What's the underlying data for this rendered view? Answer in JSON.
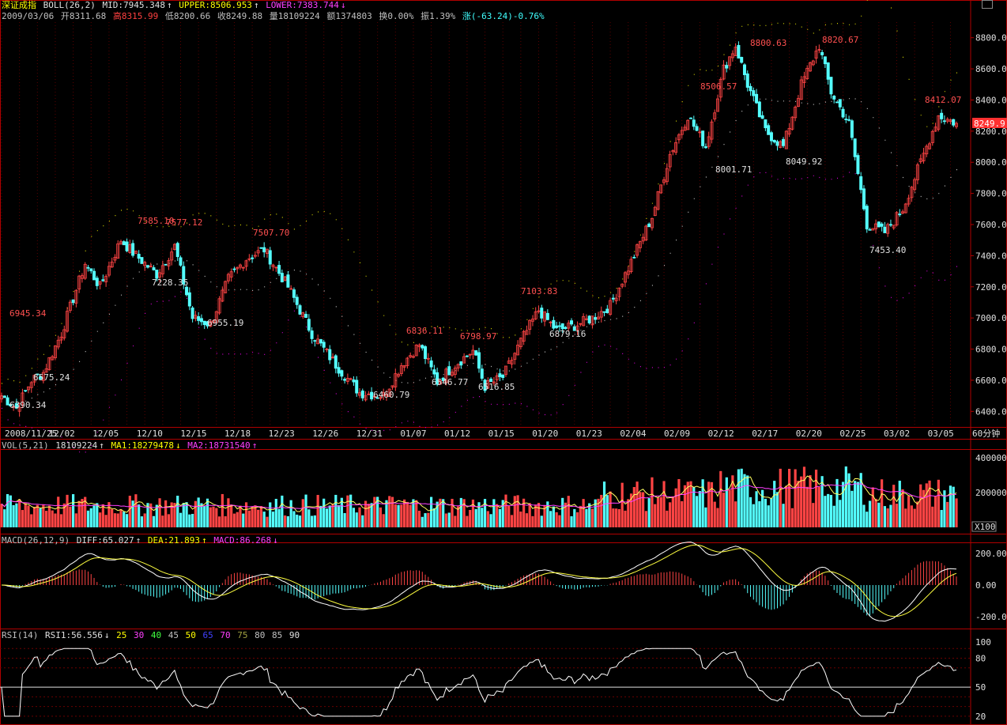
{
  "header": {
    "index_name": "深证成指",
    "boll_label": "BOLL(26,2)",
    "mid": "MID:7945.348",
    "upper": "UPPER:8506.953",
    "lower": "LOWER:7383.744",
    "arrow_up": "↑",
    "arrow_down": "↓"
  },
  "info": {
    "date": "2009/03/06",
    "open": "开8311.68",
    "high": "高8315.99",
    "low": "低8200.66",
    "close": "收8249.88",
    "volume": "量18109224",
    "amount": "额1374803",
    "turnover": "换0.00%",
    "amplitude": "振1.39%",
    "change": "涨(-63.24)-0.76%"
  },
  "price_axis": [
    "8800.0",
    "8600.0",
    "8400.0",
    "8200.0",
    "8000.0",
    "7800.0",
    "7600.0",
    "7400.0",
    "7200.0",
    "7000.0",
    "6800.0",
    "6600.0",
    "6400.0"
  ],
  "current_price": "8249.9",
  "date_axis": [
    "2008/11/25",
    "12/02",
    "12/05",
    "12/10",
    "12/15",
    "12/18",
    "12/23",
    "12/26",
    "12/31",
    "01/07",
    "01/12",
    "01/15",
    "01/20",
    "01/23",
    "02/04",
    "02/09",
    "02/12",
    "02/17",
    "02/20",
    "02/25",
    "03/02",
    "03/05"
  ],
  "period_label": "60分钟",
  "peak_labels": [
    {
      "text": "6945.34",
      "kind": "high"
    },
    {
      "text": "6575.24",
      "kind": "low"
    },
    {
      "text": "6390.34",
      "kind": "low"
    },
    {
      "text": "7585.10",
      "kind": "high"
    },
    {
      "text": "7577.12",
      "kind": "high"
    },
    {
      "text": "7228.35",
      "kind": "low"
    },
    {
      "text": "6955.19",
      "kind": "low"
    },
    {
      "text": "7507.70",
      "kind": "high"
    },
    {
      "text": "6460.79",
      "kind": "low"
    },
    {
      "text": "6836.11",
      "kind": "high"
    },
    {
      "text": "6546.77",
      "kind": "low"
    },
    {
      "text": "6798.97",
      "kind": "high"
    },
    {
      "text": "6516.85",
      "kind": "low"
    },
    {
      "text": "7103.83",
      "kind": "high"
    },
    {
      "text": "6879.16",
      "kind": "low"
    },
    {
      "text": "8506.57",
      "kind": "high"
    },
    {
      "text": "8001.71",
      "kind": "low"
    },
    {
      "text": "8800.63",
      "kind": "high"
    },
    {
      "text": "8049.92",
      "kind": "low"
    },
    {
      "text": "8820.67",
      "kind": "high"
    },
    {
      "text": "7453.40",
      "kind": "low"
    },
    {
      "text": "8412.07",
      "kind": "high"
    }
  ],
  "vol_panel": {
    "label": "VOL(5,21)",
    "value": "18109224",
    "ma1": "MA1:18279478",
    "ma2": "MA2:18731540",
    "axis": [
      "400000",
      "200000",
      "0"
    ],
    "unit": "X100"
  },
  "macd_panel": {
    "label": "MACD(26,12,9)",
    "diff": "DIFF:65.027",
    "dea": "DEA:21.893",
    "macd": "MACD:86.268",
    "axis": [
      "200.00",
      "0.00",
      "-200.00"
    ]
  },
  "rsi_panel": {
    "label": "RSI(14)",
    "rsi1": "RSI1:56.556",
    "levels": [
      "25",
      "30",
      "40",
      "45",
      "50",
      "65",
      "70",
      "75",
      "80",
      "85",
      "90"
    ],
    "axis": [
      "100",
      "80",
      "50",
      "20"
    ]
  },
  "colors": {
    "up": "#ff4444",
    "down": "#54ffff",
    "frame": "#b00000",
    "boll_mid": "#c0c0c0",
    "boll_upper": "#d0d000",
    "boll_lower": "#d000d0"
  }
}
